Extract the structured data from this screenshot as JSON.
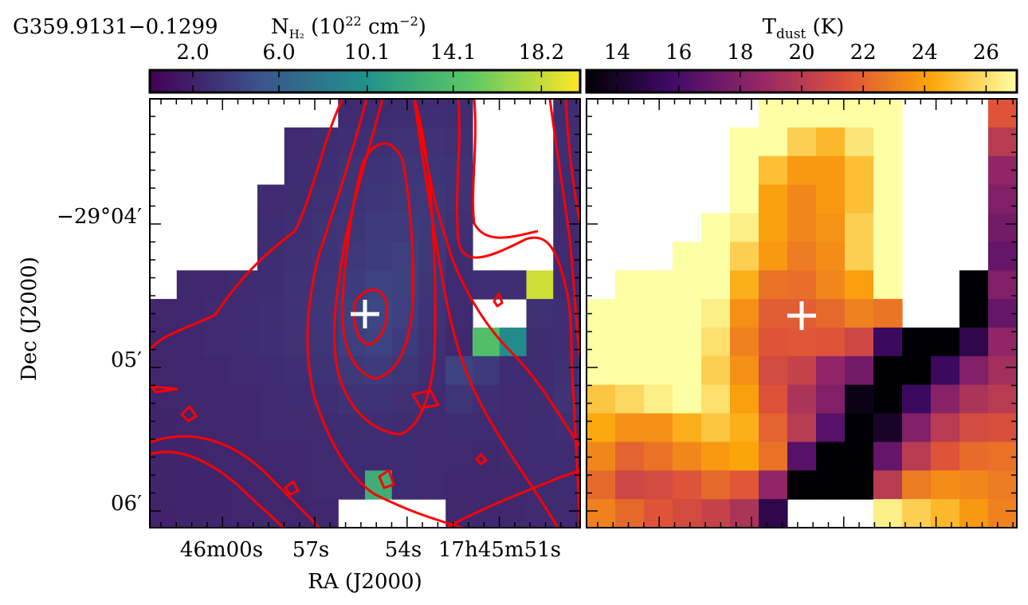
{
  "figure": {
    "source_name": "G359.9131−0.1299"
  },
  "chart_data": [
    {
      "type": "heatmap",
      "quantity": "column density",
      "colorbar": {
        "label_base": "N",
        "label_sub": "H₂",
        "label_unit": " (10",
        "label_exp": "22",
        "label_unit2": " cm",
        "label_exp2": "−2",
        "label_close": ")",
        "ticks": [
          "2.0",
          "6.0",
          "10.1",
          "14.1",
          "18.2"
        ],
        "tick_values": [
          2.0,
          6.0,
          10.1,
          14.1,
          18.2
        ],
        "range": [
          0.0,
          20.0
        ],
        "colormap": "viridis",
        "colormap_colors": [
          "#440154",
          "#3b528b",
          "#21918c",
          "#5ec962",
          "#fde725"
        ]
      },
      "xlabel": "RA (J2000)",
      "x_tick_labels": [
        "46m00s",
        "57s",
        "54s",
        "17h45m51s"
      ],
      "ylabel": "Dec (J2000)",
      "y_tick_labels": [
        "−29°04′",
        "05′",
        "06′"
      ],
      "contours": {
        "color": "#ff0000",
        "levels_count": 6
      },
      "marker": {
        "symbol": "+",
        "color": "#ffffff"
      },
      "grid_rows": 15,
      "grid_cols": 16,
      "values": [
        [
          null,
          null,
          null,
          null,
          null,
          null,
          null,
          2.6,
          2.6,
          2.7,
          2.8,
          2.7,
          null,
          null,
          null,
          2.7
        ],
        [
          null,
          null,
          null,
          null,
          null,
          2.5,
          2.7,
          2.8,
          2.9,
          3.0,
          3.0,
          2.9,
          null,
          null,
          null,
          2.8
        ],
        [
          null,
          null,
          null,
          null,
          null,
          2.6,
          2.8,
          3.0,
          3.1,
          3.3,
          3.2,
          3.0,
          null,
          null,
          null,
          2.7
        ],
        [
          null,
          null,
          null,
          null,
          2.5,
          2.7,
          2.9,
          3.1,
          3.3,
          3.4,
          3.4,
          3.0,
          null,
          null,
          null,
          2.6
        ],
        [
          null,
          null,
          null,
          null,
          2.6,
          2.8,
          3.0,
          3.2,
          3.5,
          3.6,
          3.4,
          2.9,
          null,
          null,
          null,
          2.5
        ],
        [
          null,
          null,
          null,
          null,
          2.7,
          2.9,
          3.1,
          3.4,
          3.7,
          3.8,
          3.4,
          2.7,
          null,
          null,
          null,
          2.5
        ],
        [
          null,
          2.4,
          2.4,
          2.5,
          2.7,
          3.0,
          3.2,
          3.6,
          4.0,
          3.9,
          3.2,
          2.6,
          2.8,
          2.8,
          18.5,
          2.6
        ],
        [
          2.3,
          2.4,
          2.5,
          2.6,
          2.8,
          3.0,
          3.3,
          3.9,
          4.3,
          3.8,
          3.1,
          2.5,
          null,
          null,
          2.9,
          2.8
        ],
        [
          2.3,
          2.4,
          2.5,
          2.6,
          2.8,
          3.0,
          3.2,
          3.8,
          4.1,
          3.6,
          2.9,
          2.4,
          14.0,
          9.5,
          2.7,
          2.8
        ],
        [
          2.3,
          2.3,
          2.4,
          2.5,
          2.6,
          2.8,
          3.1,
          3.4,
          3.5,
          3.2,
          2.8,
          4.0,
          3.5,
          2.6,
          2.6,
          2.9
        ],
        [
          2.3,
          2.3,
          2.4,
          2.4,
          2.5,
          2.6,
          2.8,
          3.0,
          3.1,
          2.9,
          2.6,
          3.2,
          2.8,
          2.5,
          2.7,
          3.0
        ],
        [
          2.2,
          2.3,
          2.3,
          2.4,
          2.5,
          2.5,
          2.6,
          2.7,
          2.8,
          2.7,
          2.5,
          2.7,
          2.6,
          2.5,
          2.6,
          2.8
        ],
        [
          2.2,
          2.2,
          2.3,
          2.3,
          2.4,
          2.4,
          2.5,
          2.6,
          2.6,
          2.6,
          2.5,
          2.5,
          2.4,
          2.5,
          2.6,
          2.6
        ],
        [
          2.2,
          2.2,
          2.2,
          2.3,
          2.3,
          2.4,
          2.5,
          2.5,
          12.5,
          2.6,
          2.5,
          2.4,
          2.4,
          2.4,
          2.5,
          2.6
        ],
        [
          2.1,
          2.2,
          2.2,
          2.3,
          2.3,
          2.3,
          2.4,
          null,
          null,
          null,
          null,
          2.4,
          2.4,
          2.4,
          2.5,
          2.5
        ]
      ]
    },
    {
      "type": "heatmap",
      "quantity": "dust temperature",
      "colorbar": {
        "label_base": "T",
        "label_sub": "dust",
        "label_unit": " (K)",
        "ticks": [
          "14",
          "16",
          "18",
          "20",
          "22",
          "24",
          "26"
        ],
        "tick_values": [
          14,
          16,
          18,
          20,
          22,
          24,
          26
        ],
        "range": [
          13.0,
          27.0
        ],
        "colormap": "inferno",
        "colormap_colors": [
          "#000004",
          "#420a68",
          "#932667",
          "#dd513a",
          "#fca50a",
          "#fcffa4"
        ]
      },
      "marker": {
        "symbol": "+",
        "color": "#ffffff"
      },
      "grid_rows": 15,
      "grid_cols": 15,
      "values": [
        [
          null,
          null,
          null,
          null,
          null,
          null,
          27.0,
          27.0,
          27.0,
          27.0,
          27.0,
          null,
          null,
          null,
          21.5
        ],
        [
          null,
          null,
          null,
          null,
          null,
          27.0,
          27.0,
          25.5,
          24.8,
          26.2,
          27.0,
          null,
          null,
          null,
          20.0
        ],
        [
          null,
          null,
          null,
          null,
          null,
          27.0,
          25.0,
          23.8,
          23.8,
          25.0,
          27.0,
          null,
          null,
          null,
          18.5
        ],
        [
          null,
          null,
          null,
          null,
          null,
          27.0,
          24.0,
          23.2,
          23.8,
          25.0,
          27.0,
          null,
          null,
          null,
          18.0
        ],
        [
          null,
          null,
          null,
          null,
          27.0,
          26.5,
          24.0,
          23.2,
          23.6,
          25.5,
          27.0,
          null,
          null,
          null,
          17.5
        ],
        [
          null,
          null,
          null,
          27.0,
          27.0,
          25.5,
          23.8,
          22.8,
          23.4,
          25.5,
          27.0,
          null,
          null,
          null,
          17.0
        ],
        [
          null,
          27.0,
          27.0,
          27.0,
          27.0,
          24.5,
          22.5,
          22.4,
          23.2,
          24.0,
          27.0,
          null,
          null,
          13.0,
          18.0
        ],
        [
          27.0,
          27.0,
          27.0,
          27.0,
          26.5,
          23.5,
          21.8,
          21.8,
          22.2,
          23.0,
          22.6,
          null,
          null,
          13.0,
          17.0
        ],
        [
          27.0,
          27.0,
          27.0,
          27.0,
          26.0,
          23.0,
          21.5,
          21.6,
          21.5,
          20.8,
          15.5,
          13.0,
          13.0,
          15.0,
          18.5
        ],
        [
          27.0,
          27.0,
          27.0,
          27.0,
          25.5,
          23.5,
          21.0,
          20.5,
          18.5,
          17.5,
          13.0,
          13.0,
          15.5,
          18.0,
          19.2
        ],
        [
          25.2,
          25.8,
          26.5,
          27.0,
          26.0,
          24.0,
          21.4,
          19.5,
          18.0,
          13.5,
          13.0,
          15.5,
          18.2,
          19.5,
          20.0
        ],
        [
          24.3,
          23.5,
          23.5,
          24.5,
          25.2,
          24.5,
          22.0,
          20.0,
          16.5,
          13.0,
          14.0,
          18.0,
          20.0,
          21.0,
          21.2
        ],
        [
          23.2,
          22.0,
          22.5,
          23.2,
          23.8,
          24.2,
          22.5,
          16.5,
          13.0,
          13.0,
          17.0,
          20.0,
          21.5,
          22.3,
          22.5
        ],
        [
          22.2,
          20.8,
          21.0,
          21.5,
          22.2,
          21.6,
          18.5,
          13.0,
          13.0,
          13.0,
          20.0,
          22.8,
          23.4,
          23.2,
          22.8
        ],
        [
          23.0,
          22.2,
          21.5,
          21.0,
          20.5,
          19.5,
          15.0,
          null,
          null,
          null,
          26.5,
          25.5,
          24.8,
          23.8,
          23.0
        ]
      ]
    }
  ]
}
